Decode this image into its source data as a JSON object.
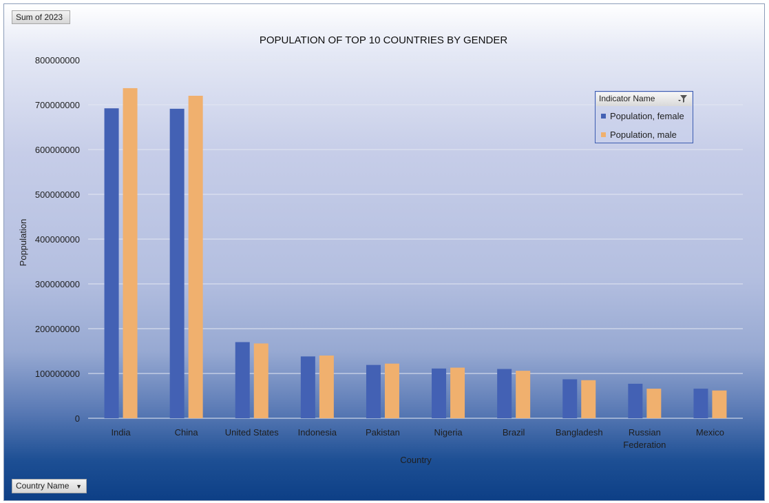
{
  "pivot": {
    "values_field": "Sum of 2023",
    "axis_field": "Country Name",
    "legend_field": "Indicator Name"
  },
  "chart_data": {
    "type": "bar",
    "title": "POPULATION OF TOP 10 COUNTRIES BY GENDER",
    "xlabel": "Country",
    "ylabel": "Poppulation",
    "ylim": [
      0,
      800000000
    ],
    "yticks": [
      "0",
      "100000000",
      "200000000",
      "300000000",
      "400000000",
      "500000000",
      "600000000",
      "700000000",
      "800000000"
    ],
    "categories": [
      "India",
      "China",
      "United States",
      "Indonesia",
      "Pakistan",
      "Nigeria",
      "Brazil",
      "Bangladesh",
      "Russian Federation",
      "Mexico"
    ],
    "series": [
      {
        "name": "Population, female",
        "color": "#4361b4",
        "values": [
          692000000,
          691000000,
          170000000,
          138000000,
          119000000,
          111000000,
          110000000,
          87000000,
          77000000,
          66000000
        ]
      },
      {
        "name": "Population, male",
        "color": "#f0b06e",
        "values": [
          737000000,
          720000000,
          167000000,
          140000000,
          122000000,
          113000000,
          106000000,
          85000000,
          66000000,
          62000000
        ]
      }
    ],
    "grid": true,
    "legend_position": "top-right"
  }
}
